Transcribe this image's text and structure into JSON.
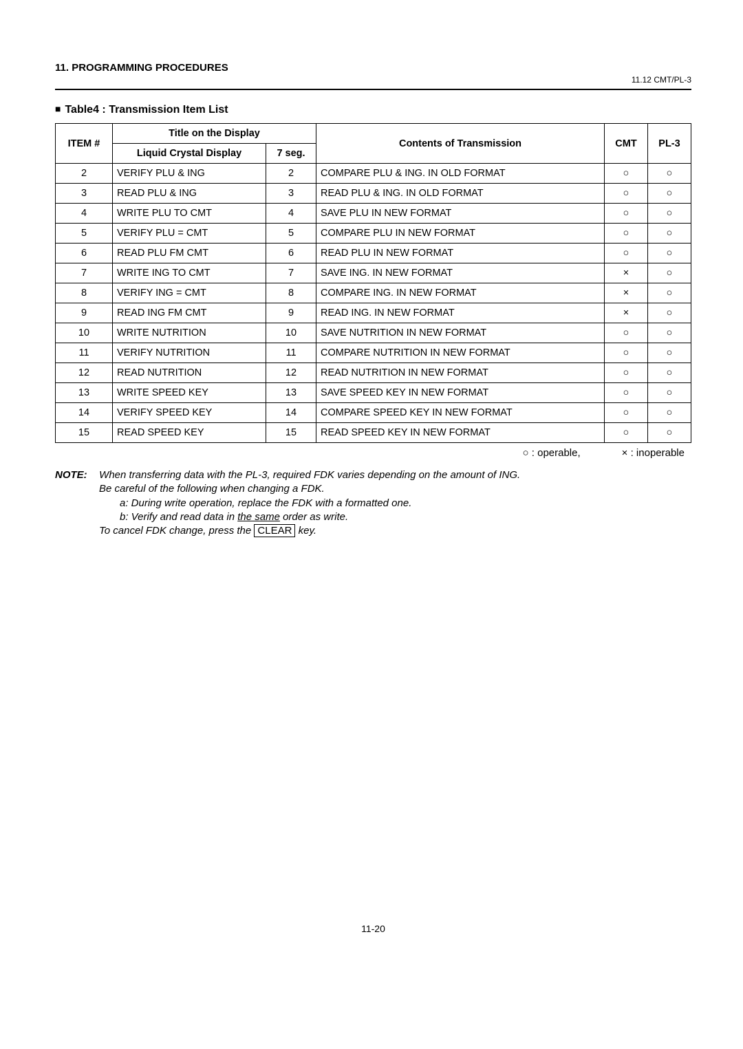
{
  "header": {
    "section": "11. PROGRAMMING PROCEDURES",
    "subsection": "11.12 CMT/PL-3"
  },
  "table": {
    "title_prefix_glyph": "■",
    "title": "Table4 :  Transmission Item List",
    "columns": {
      "item": "ITEM #",
      "title_group": "Title on the Display",
      "lcd": "Liquid Crystal Display",
      "seg": "7 seg.",
      "contents": "Contents of Transmission",
      "cmt": "CMT",
      "pl3": "PL-3"
    },
    "operable_glyph": "○",
    "inoperable_glyph": "×",
    "rows": [
      {
        "item": "2",
        "lcd": "VERIFY PLU & ING",
        "seg": "2",
        "contents": "COMPARE PLU & ING. IN OLD FORMAT",
        "cmt": "○",
        "pl3": "○"
      },
      {
        "item": "3",
        "lcd": "READ PLU & ING",
        "seg": "3",
        "contents": "READ PLU & ING. IN OLD FORMAT",
        "cmt": "○",
        "pl3": "○"
      },
      {
        "item": "4",
        "lcd": "WRITE PLU TO CMT",
        "seg": "4",
        "contents": "SAVE PLU IN NEW FORMAT",
        "cmt": "○",
        "pl3": "○"
      },
      {
        "item": "5",
        "lcd": "VERIFY PLU = CMT",
        "seg": "5",
        "contents": "COMPARE PLU IN NEW FORMAT",
        "cmt": "○",
        "pl3": "○"
      },
      {
        "item": "6",
        "lcd": "READ PLU FM CMT",
        "seg": "6",
        "contents": "READ PLU IN NEW FORMAT",
        "cmt": "○",
        "pl3": "○"
      },
      {
        "item": "7",
        "lcd": "WRITE ING TO CMT",
        "seg": "7",
        "contents": "SAVE ING. IN NEW FORMAT",
        "cmt": "×",
        "pl3": "○"
      },
      {
        "item": "8",
        "lcd": "VERIFY ING = CMT",
        "seg": "8",
        "contents": "COMPARE ING. IN NEW FORMAT",
        "cmt": "×",
        "pl3": "○"
      },
      {
        "item": "9",
        "lcd": "READ ING FM CMT",
        "seg": "9",
        "contents": "READ ING. IN NEW FORMAT",
        "cmt": "×",
        "pl3": "○"
      },
      {
        "item": "10",
        "lcd": "WRITE NUTRITION",
        "seg": "10",
        "contents": "SAVE NUTRITION IN NEW FORMAT",
        "cmt": "○",
        "pl3": "○"
      },
      {
        "item": "11",
        "lcd": "VERIFY NUTRITION",
        "seg": "11",
        "contents": "COMPARE NUTRITION IN NEW FORMAT",
        "cmt": "○",
        "pl3": "○"
      },
      {
        "item": "12",
        "lcd": "READ NUTRITION",
        "seg": "12",
        "contents": "READ NUTRITION IN NEW FORMAT",
        "cmt": "○",
        "pl3": "○"
      },
      {
        "item": "13",
        "lcd": "WRITE SPEED KEY",
        "seg": "13",
        "contents": "SAVE SPEED KEY IN NEW FORMAT",
        "cmt": "○",
        "pl3": "○"
      },
      {
        "item": "14",
        "lcd": "VERIFY SPEED KEY",
        "seg": "14",
        "contents": "COMPARE SPEED KEY IN NEW FORMAT",
        "cmt": "○",
        "pl3": "○"
      },
      {
        "item": "15",
        "lcd": "READ SPEED KEY",
        "seg": "15",
        "contents": "READ SPEED KEY IN NEW FORMAT",
        "cmt": "○",
        "pl3": "○"
      }
    ]
  },
  "legend": {
    "operable": ": operable,",
    "inoperable": ": inoperable"
  },
  "note": {
    "label": "NOTE:",
    "line1": "When transferring data with the PL-3, required FDK varies depending on the amount of ING.",
    "line2": "Be careful of the following when changing a FDK.",
    "item_a": "a:   During write operation, replace the FDK with a formatted one.",
    "item_b_pre": "b:   Verify and read data in ",
    "item_b_underline": "the same",
    "item_b_post": " order as write.",
    "line3_pre": "To cancel FDK change, press the ",
    "line3_key": "CLEAR",
    "line3_post": "  key."
  },
  "page_number": "11-20"
}
